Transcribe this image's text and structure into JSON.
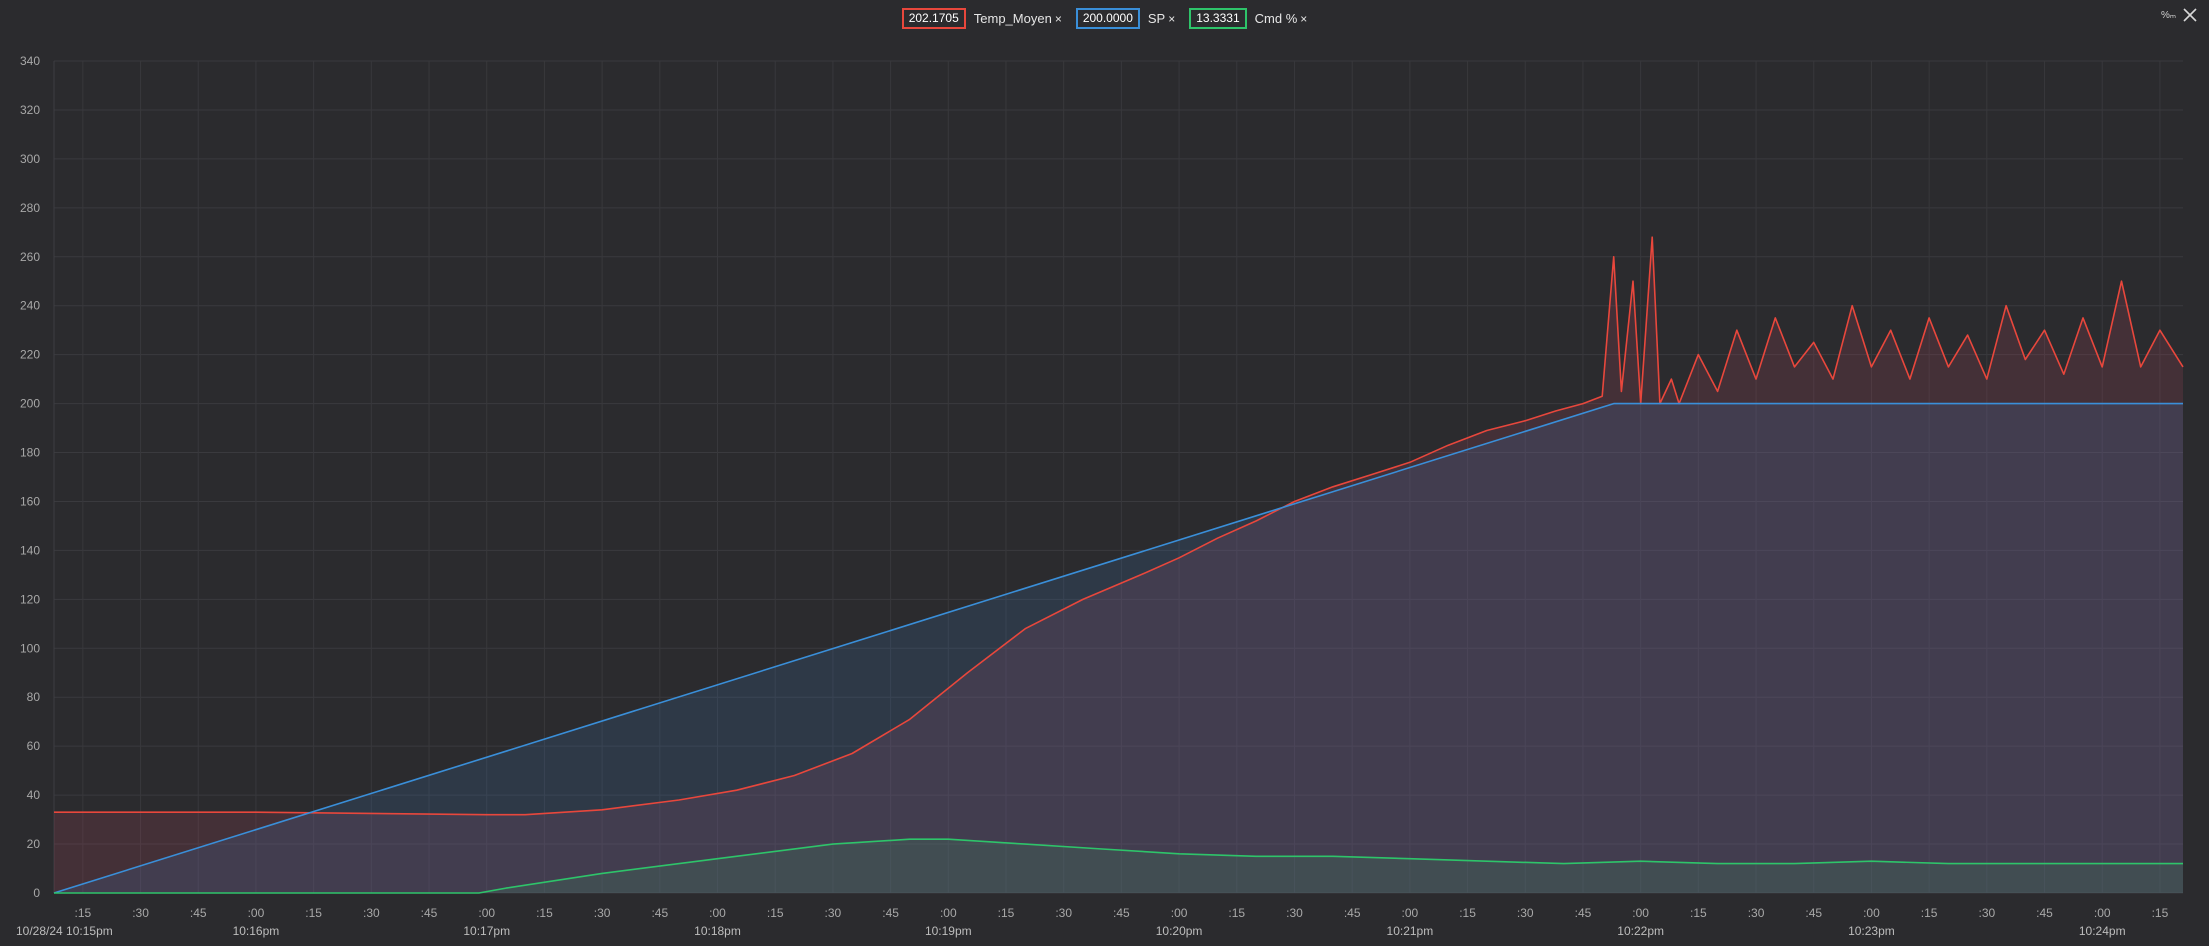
{
  "legend": [
    {
      "value": "202.1705",
      "name": "Temp_Moyen",
      "close": "×",
      "color": "#e8473c"
    },
    {
      "value": "200.0000",
      "name": "SP",
      "close": "×",
      "color": "#3a8fd9"
    },
    {
      "value": "13.3331",
      "name": "Cmd %",
      "close": "×",
      "color": "#2ec46a"
    }
  ],
  "toolbar": {
    "percent_label": "%ₘ"
  },
  "chart_data": {
    "type": "line",
    "y_ticks": [
      "0",
      "20",
      "40",
      "60",
      "80",
      "100",
      "120",
      "140",
      "160",
      "180",
      "200",
      "220",
      "240",
      "260",
      "280",
      "300",
      "320",
      "340"
    ],
    "ylim": [
      0,
      340
    ],
    "x_unit": "seconds from 10:15:00pm",
    "xlim": [
      7.5,
      561
    ],
    "x_ticks": [
      {
        "t": 15,
        "label": ":15"
      },
      {
        "t": 30,
        "label": ":30"
      },
      {
        "t": 45,
        "label": ":45"
      },
      {
        "t": 60,
        "label": ":00"
      },
      {
        "t": 75,
        "label": ":15"
      },
      {
        "t": 90,
        "label": ":30"
      },
      {
        "t": 105,
        "label": ":45"
      },
      {
        "t": 120,
        "label": ":00"
      },
      {
        "t": 135,
        "label": ":15"
      },
      {
        "t": 150,
        "label": ":30"
      },
      {
        "t": 165,
        "label": ":45"
      },
      {
        "t": 180,
        "label": ":00"
      },
      {
        "t": 195,
        "label": ":15"
      },
      {
        "t": 210,
        "label": ":30"
      },
      {
        "t": 225,
        "label": ":45"
      },
      {
        "t": 240,
        "label": ":00"
      },
      {
        "t": 255,
        "label": ":15"
      },
      {
        "t": 270,
        "label": ":30"
      },
      {
        "t": 285,
        "label": ":45"
      },
      {
        "t": 300,
        "label": ":00"
      },
      {
        "t": 315,
        "label": ":15"
      },
      {
        "t": 330,
        "label": ":30"
      },
      {
        "t": 345,
        "label": ":45"
      },
      {
        "t": 360,
        "label": ":00"
      },
      {
        "t": 375,
        "label": ":15"
      },
      {
        "t": 390,
        "label": ":30"
      },
      {
        "t": 405,
        "label": ":45"
      },
      {
        "t": 420,
        "label": ":00"
      },
      {
        "t": 435,
        "label": ":15"
      },
      {
        "t": 450,
        "label": ":30"
      },
      {
        "t": 465,
        "label": ":45"
      },
      {
        "t": 480,
        "label": ":00"
      },
      {
        "t": 495,
        "label": ":15"
      },
      {
        "t": 510,
        "label": ":30"
      },
      {
        "t": 525,
        "label": ":45"
      },
      {
        "t": 540,
        "label": ":00"
      },
      {
        "t": 555,
        "label": ":15"
      }
    ],
    "x_major": [
      {
        "t": 7.5,
        "label": "10/28/24 10:15pm"
      },
      {
        "t": 60,
        "label": "10:16pm"
      },
      {
        "t": 120,
        "label": "10:17pm"
      },
      {
        "t": 180,
        "label": "10:18pm"
      },
      {
        "t": 240,
        "label": "10:19pm"
      },
      {
        "t": 300,
        "label": "10:20pm"
      },
      {
        "t": 360,
        "label": "10:21pm"
      },
      {
        "t": 420,
        "label": "10:22pm"
      },
      {
        "t": 480,
        "label": "10:23pm"
      },
      {
        "t": 540,
        "label": "10:24pm"
      }
    ],
    "series": [
      {
        "name": "Temp_Moyen",
        "color": "#e8473c",
        "fill": "rgba(160,70,90,0.22)",
        "x": [
          7.5,
          60,
          120,
          130,
          150,
          170,
          185,
          200,
          215,
          230,
          245,
          260,
          275,
          290,
          300,
          310,
          320,
          330,
          340,
          350,
          360,
          370,
          380,
          390,
          398,
          405,
          410,
          413,
          415,
          418,
          420,
          423,
          425,
          428,
          430,
          435,
          440,
          445,
          450,
          455,
          460,
          465,
          470,
          475,
          480,
          485,
          490,
          495,
          500,
          505,
          510,
          515,
          520,
          525,
          530,
          535,
          540,
          545,
          550,
          555,
          561
        ],
        "y": [
          33,
          33,
          32,
          32,
          34,
          38,
          42,
          48,
          57,
          71,
          90,
          108,
          120,
          130,
          137,
          145,
          152,
          160,
          166,
          171,
          176,
          183,
          189,
          193,
          197,
          200,
          203,
          260,
          205,
          250,
          200,
          268,
          200,
          210,
          200,
          220,
          205,
          230,
          210,
          235,
          215,
          225,
          210,
          240,
          215,
          230,
          210,
          235,
          215,
          228,
          210,
          240,
          218,
          230,
          212,
          235,
          215,
          250,
          215,
          230,
          215
        ]
      },
      {
        "name": "SP",
        "color": "#3a8fd9",
        "fill": "rgba(60,120,190,0.18)",
        "x": [
          7.5,
          413,
          561
        ],
        "y": [
          0,
          200,
          200
        ]
      },
      {
        "name": "Cmd %",
        "color": "#2ec46a",
        "fill": "rgba(60,150,100,0.18)",
        "x": [
          7.5,
          118,
          125,
          150,
          180,
          210,
          230,
          240,
          260,
          280,
          300,
          320,
          340,
          360,
          380,
          400,
          420,
          440,
          460,
          480,
          500,
          520,
          540,
          561
        ],
        "y": [
          0,
          0,
          2,
          8,
          14,
          20,
          22,
          22,
          20,
          18,
          16,
          15,
          15,
          14,
          13,
          12,
          13,
          12,
          12,
          13,
          12,
          12,
          12,
          12
        ]
      }
    ]
  }
}
